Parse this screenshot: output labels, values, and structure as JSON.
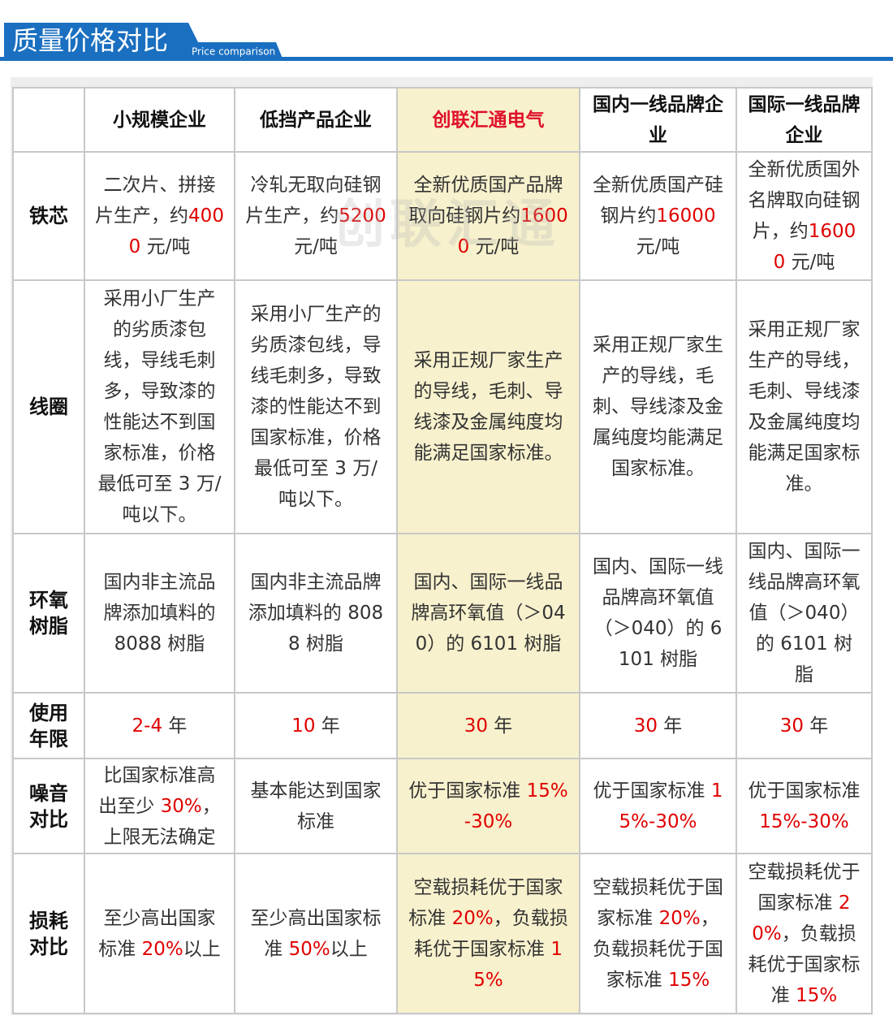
{
  "header": {
    "title": "质量价格对比",
    "subtitle": "Price comparison"
  },
  "watermark": "创联汇通",
  "table": {
    "highlight_column": 2,
    "highlight_color": "#f7f1cd",
    "columns": [
      {
        "text": "小规模企业"
      },
      {
        "text": "低挡产品企业"
      },
      {
        "text": "创联汇通电气",
        "color": "#e0102a"
      },
      {
        "text": "国内一线品牌企业"
      },
      {
        "text": "国际一线品牌企业"
      }
    ],
    "rows": [
      {
        "label": "铁芯",
        "cells": [
          [
            {
              "text": "二次片、拼接片生产，约"
            },
            {
              "text": "4000",
              "color": "#e00000"
            },
            {
              "text": " 元/吨"
            }
          ],
          [
            {
              "text": "冷轧无取向硅钢片生产，约"
            },
            {
              "text": "5200",
              "color": "#e00000"
            },
            {
              "text": " 元/吨"
            }
          ],
          [
            {
              "text": "全新优质国产品牌取向硅钢片约"
            },
            {
              "text": "16000",
              "color": "#e00000"
            },
            {
              "text": " 元/吨"
            }
          ],
          [
            {
              "text": "全新优质国产硅钢片约"
            },
            {
              "text": "16000",
              "color": "#e00000"
            },
            {
              "text": " 元/吨"
            }
          ],
          [
            {
              "text": "全新优质国外名牌取向硅钢片，约"
            },
            {
              "text": "16000",
              "color": "#e00000"
            },
            {
              "text": " 元/吨"
            }
          ]
        ]
      },
      {
        "label": "线圈",
        "cells": [
          [
            {
              "text": "采用小厂生产的劣质漆包线，导线毛刺多，导致漆的性能达不到国家标准，价格最低可至 3 万/吨以下。"
            }
          ],
          [
            {
              "text": "采用小厂生产的劣质漆包线，导线毛刺多，导致漆的性能达不到国家标准，价格最低可至 3 万/吨以下。"
            }
          ],
          [
            {
              "text": "采用正规厂家生产的导线，毛刺、导线漆及金属纯度均能满足国家标准。"
            }
          ],
          [
            {
              "text": "采用正规厂家生产的导线，毛刺、导线漆及金属纯度均能满足国家标准。"
            }
          ],
          [
            {
              "text": "采用正规厂家生产的导线，毛刺、导线漆及金属纯度均能满足国家标准。"
            }
          ]
        ]
      },
      {
        "label": "环氧树脂",
        "cells": [
          [
            {
              "text": "国内非主流品牌添加填料的 8088 树脂"
            }
          ],
          [
            {
              "text": "国内非主流品牌添加填料的 8088 树脂"
            }
          ],
          [
            {
              "text": "国内、国际一线品牌高环氧值（＞040）的 6101 树脂"
            }
          ],
          [
            {
              "text": "国内、国际一线品牌高环氧值（＞040）的 6101 树脂"
            }
          ],
          [
            {
              "text": "国内、国际一线品牌高环氧值（＞040）的 6101 树脂"
            }
          ]
        ]
      },
      {
        "label": "使用年限",
        "cells": [
          [
            {
              "text": "2-4",
              "color": "#e00000"
            },
            {
              "text": " 年"
            }
          ],
          [
            {
              "text": "10",
              "color": "#e00000"
            },
            {
              "text": " 年"
            }
          ],
          [
            {
              "text": "30",
              "color": "#e00000"
            },
            {
              "text": " 年"
            }
          ],
          [
            {
              "text": "30",
              "color": "#e00000"
            },
            {
              "text": " 年"
            }
          ],
          [
            {
              "text": "30",
              "color": "#e00000"
            },
            {
              "text": " 年"
            }
          ]
        ]
      },
      {
        "label": "噪音对比",
        "cells": [
          [
            {
              "text": "比国家标准高出至少 "
            },
            {
              "text": "30%",
              "color": "#e00000"
            },
            {
              "text": "，上限无法确定"
            }
          ],
          [
            {
              "text": "基本能达到国家标准"
            }
          ],
          [
            {
              "text": "优于国家标准 "
            },
            {
              "text": "15%-30%",
              "color": "#e00000"
            }
          ],
          [
            {
              "text": "优于国家标准 "
            },
            {
              "text": "15%-30%",
              "color": "#e00000"
            }
          ],
          [
            {
              "text": "优于国家标准 "
            },
            {
              "text": "15%-30%",
              "color": "#e00000"
            }
          ]
        ]
      },
      {
        "label": "损耗对比",
        "cells": [
          [
            {
              "text": "至少高出国家标准 "
            },
            {
              "text": "20%",
              "color": "#e00000"
            },
            {
              "text": "以上"
            }
          ],
          [
            {
              "text": "至少高出国家标准 "
            },
            {
              "text": "50%",
              "color": "#e00000"
            },
            {
              "text": "以上"
            }
          ],
          [
            {
              "text": "空载损耗优于国家标准 "
            },
            {
              "text": "20%",
              "color": "#e00000"
            },
            {
              "text": "，负载损耗优于国家标准 "
            },
            {
              "text": "15%",
              "color": "#e00000"
            }
          ],
          [
            {
              "text": "空载损耗优于国家标准 "
            },
            {
              "text": "20%",
              "color": "#e00000"
            },
            {
              "text": "，负载损耗优于国家标准 "
            },
            {
              "text": "15%",
              "color": "#e00000"
            }
          ],
          [
            {
              "text": "空载损耗优于国家标准 "
            },
            {
              "text": "20%",
              "color": "#e00000"
            },
            {
              "text": "，负载损耗优于国家标准 "
            },
            {
              "text": "15%",
              "color": "#e00000"
            }
          ]
        ]
      }
    ]
  }
}
